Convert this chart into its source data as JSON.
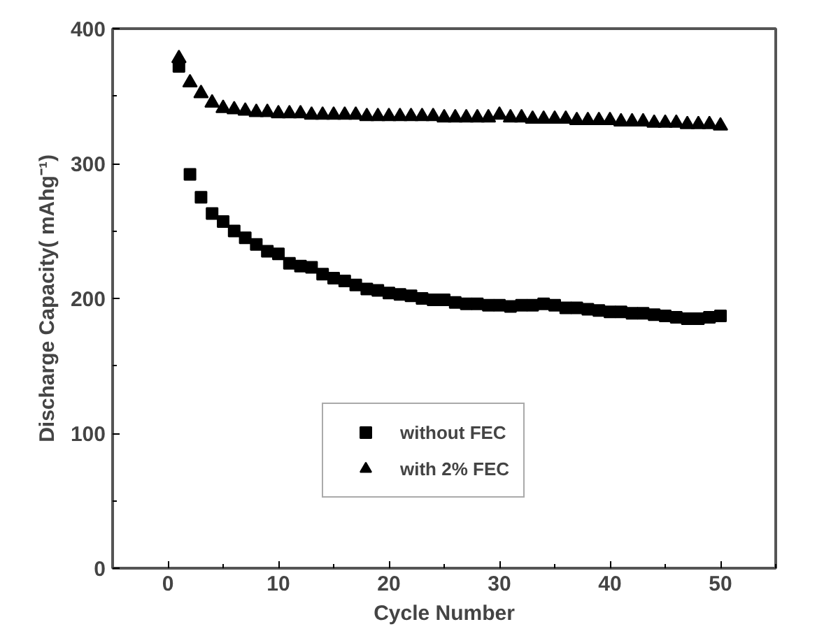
{
  "chart_data": {
    "type": "scatter",
    "xlabel": "Cycle Number",
    "ylabel": "Discharge Capacity( mAhg⁻¹)",
    "xlim": [
      -5,
      55
    ],
    "ylim": [
      0,
      400
    ],
    "xticks": [
      0,
      10,
      20,
      30,
      40,
      50
    ],
    "yticks": [
      0,
      100,
      200,
      300,
      400
    ],
    "grid": false,
    "legend": "bottom",
    "x": [
      1,
      2,
      3,
      4,
      5,
      6,
      7,
      8,
      9,
      10,
      11,
      12,
      13,
      14,
      15,
      16,
      17,
      18,
      19,
      20,
      21,
      22,
      23,
      24,
      25,
      26,
      27,
      28,
      29,
      30,
      31,
      32,
      33,
      34,
      35,
      36,
      37,
      38,
      39,
      40,
      41,
      42,
      43,
      44,
      45,
      46,
      47,
      48,
      49,
      50
    ],
    "series": [
      {
        "name": "without FEC",
        "color": "#000000",
        "marker": "square",
        "values": [
          372,
          292,
          275,
          263,
          257,
          250,
          245,
          240,
          235,
          233,
          226,
          224,
          223,
          218,
          215,
          213,
          210,
          207,
          206,
          204,
          203,
          202,
          200,
          199,
          199,
          197,
          196,
          196,
          195,
          195,
          194,
          195,
          195,
          196,
          195,
          193,
          193,
          192,
          191,
          190,
          190,
          189,
          189,
          188,
          187,
          186,
          185,
          185,
          186,
          187
        ]
      },
      {
        "name": "with 2% FEC",
        "color": "#000000",
        "marker": "triangle",
        "values": [
          378,
          360,
          352,
          345,
          341,
          340,
          339,
          338,
          338,
          337,
          337,
          337,
          336,
          336,
          336,
          336,
          336,
          335,
          335,
          335,
          335,
          335,
          335,
          335,
          334,
          334,
          334,
          334,
          334,
          336,
          334,
          334,
          333,
          333,
          333,
          333,
          332,
          332,
          332,
          332,
          331,
          331,
          331,
          330,
          330,
          330,
          329,
          329,
          329,
          328
        ]
      }
    ]
  }
}
